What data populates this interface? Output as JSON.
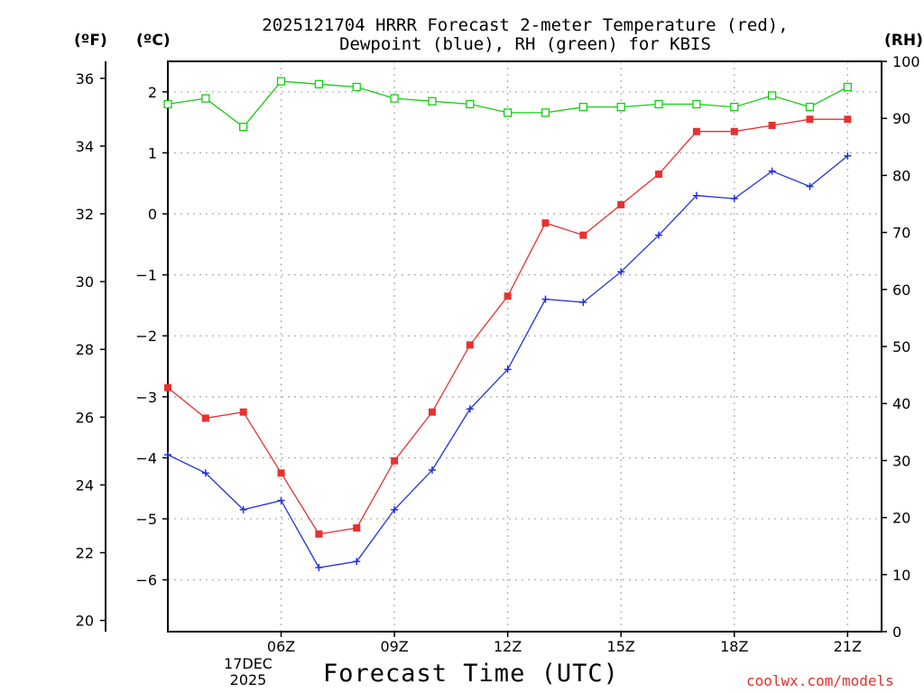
{
  "title_line1": "2025121704 HRRR Forecast 2-meter Temperature (red),",
  "title_line2": "Dewpoint (blue), RH (green) for KBIS",
  "units": {
    "fahrenheit": "(ºF)",
    "celsius": "(ºC)",
    "rh": "(RH)"
  },
  "xlabel": "Forecast Time (UTC)",
  "date_day": "17DEC",
  "date_year": "2025",
  "credit": "coolwx.com/models",
  "colors": {
    "temperature": "#e83030",
    "dewpoint": "#2030e0",
    "rh": "#10d010",
    "grid": "#aaaaaa"
  },
  "chart_data": {
    "type": "line",
    "x_hours_utc": [
      3,
      4,
      5,
      6,
      7,
      8,
      9,
      10,
      11,
      12,
      13,
      14,
      15,
      16,
      17,
      18,
      19,
      20,
      21,
      22
    ],
    "x_range": [
      3,
      21.9
    ],
    "x_ticks": [
      {
        "hour": 6,
        "label": "06Z"
      },
      {
        "hour": 9,
        "label": "09Z"
      },
      {
        "hour": 12,
        "label": "12Z"
      },
      {
        "hour": 15,
        "label": "15Z"
      },
      {
        "hour": 18,
        "label": "18Z"
      },
      {
        "hour": 21,
        "label": "21Z"
      }
    ],
    "celsius_axis": {
      "range": [
        -6.85,
        2.5
      ],
      "ticks": [
        2,
        1,
        0,
        -1,
        -2,
        -3,
        -4,
        -5,
        -6
      ]
    },
    "fahrenheit_axis": {
      "range": [
        19.67,
        36.5
      ],
      "ticks": [
        36,
        34,
        32,
        30,
        28,
        26,
        24,
        22,
        20
      ]
    },
    "rh_axis": {
      "range": [
        0,
        100
      ],
      "ticks": [
        100,
        90,
        80,
        70,
        60,
        50,
        40,
        30,
        20,
        10,
        0
      ]
    },
    "series": [
      {
        "name": "Temperature",
        "unit": "C",
        "color": "#e83030",
        "marker": "filled-square",
        "values": [
          -2.85,
          -3.35,
          -3.25,
          -4.25,
          -5.25,
          -5.15,
          -4.05,
          -3.25,
          -2.15,
          -1.35,
          -0.15,
          -0.35,
          0.15,
          0.65,
          1.35,
          1.35,
          1.45,
          1.55,
          1.55,
          null
        ]
      },
      {
        "name": "Dewpoint",
        "unit": "C",
        "color": "#2030e0",
        "marker": "plus",
        "values": [
          -3.95,
          -4.25,
          -4.85,
          -4.7,
          -5.8,
          -5.7,
          -4.85,
          -4.2,
          -3.2,
          -2.55,
          -1.4,
          -1.45,
          -0.95,
          -0.35,
          0.3,
          0.25,
          0.7,
          0.45,
          0.95,
          null
        ]
      },
      {
        "name": "RH",
        "unit": "%",
        "color": "#10d010",
        "marker": "open-square",
        "values": [
          92.5,
          93.5,
          88.5,
          96.5,
          96,
          95.5,
          93.5,
          93,
          92.5,
          91,
          91,
          92,
          92,
          92.5,
          92.5,
          92,
          94,
          92,
          95.5,
          null
        ]
      }
    ]
  }
}
